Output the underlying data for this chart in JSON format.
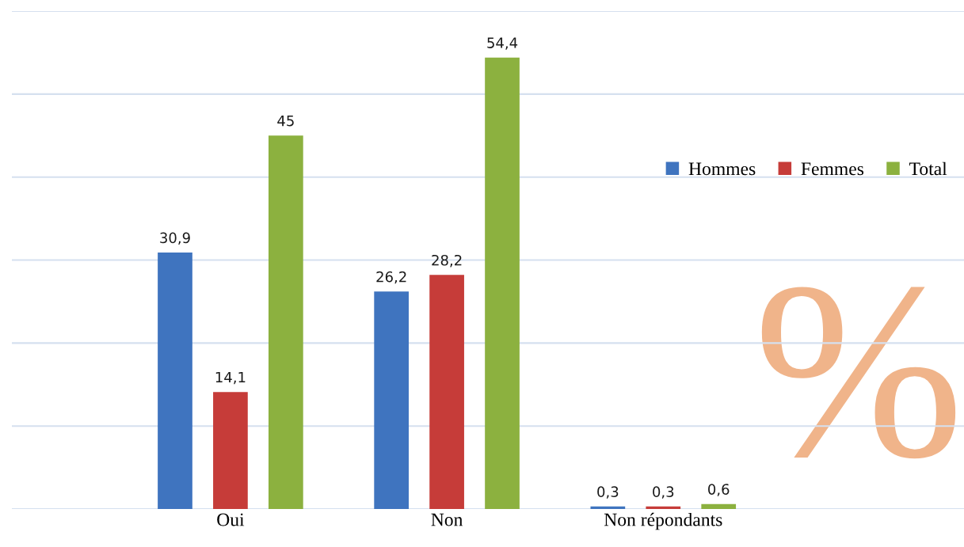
{
  "chart_data": {
    "type": "bar",
    "categories": [
      "Oui",
      "Non",
      "Non répondants"
    ],
    "series": [
      {
        "name": "Hommes",
        "color": "#3f74bf",
        "values": [
          30.9,
          26.2,
          0.3
        ],
        "value_labels": [
          "30,9",
          "26,2",
          "0,3"
        ]
      },
      {
        "name": "Femmes",
        "color": "#c63c39",
        "values": [
          14.1,
          28.2,
          0.3
        ],
        "value_labels": [
          "14,1",
          "28,2",
          "0,3"
        ]
      },
      {
        "name": "Total",
        "color": "#8cb13f",
        "values": [
          45,
          54.4,
          0.6
        ],
        "value_labels": [
          "45",
          "54,4",
          "0,6"
        ]
      }
    ],
    "ylim": [
      0,
      60
    ],
    "yticks": [
      {
        "value": 0,
        "label": null
      },
      {
        "value": 10,
        "label": null
      },
      {
        "value": 20,
        "label": null
      },
      {
        "value": 30,
        "label": null
      },
      {
        "value": 40,
        "label": null
      },
      {
        "value": 50,
        "label": null
      },
      {
        "value": 60,
        "label": null
      }
    ],
    "tick_labels": "x",
    "grid": "y",
    "legend": "right",
    "annotations": [
      "%"
    ]
  }
}
